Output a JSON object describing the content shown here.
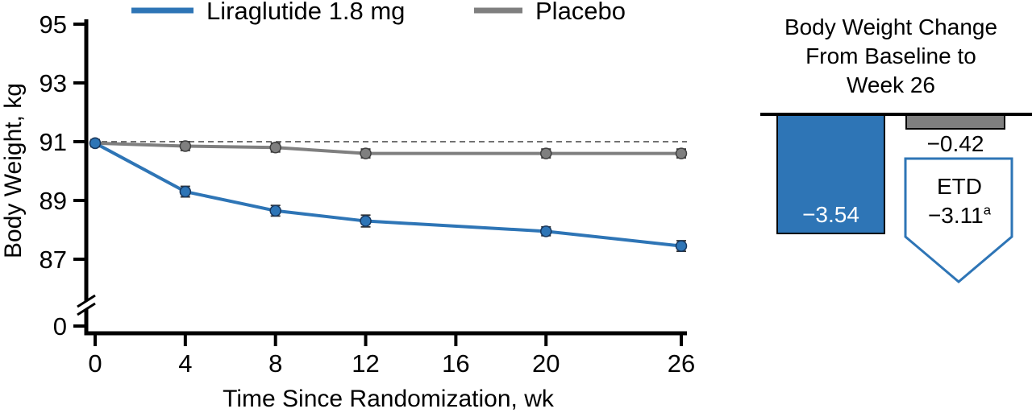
{
  "figure": {
    "background": "#ffffff"
  },
  "colors": {
    "liraglutide_blue": "#2E75B6",
    "placebo_gray": "#7F7F7F",
    "axis_black": "#000000"
  },
  "chart_data": [
    {
      "type": "line",
      "title": "",
      "xlabel": "Time Since Randomization, wk",
      "ylabel": "Body Weight, kg",
      "x_ticks": [
        0,
        4,
        8,
        12,
        16,
        20,
        26
      ],
      "y_ticks": [
        0,
        87,
        89,
        91,
        93,
        95
      ],
      "y_axis_break": true,
      "baseline_dashed_y": 91,
      "legend_position": "top",
      "x": [
        0,
        4,
        8,
        12,
        20,
        26
      ],
      "series": [
        {
          "name": "Liraglutide 1.8 mg",
          "color": "#2E75B6",
          "marker_edge": "#17375E",
          "values": [
            90.95,
            89.3,
            88.65,
            88.3,
            87.95,
            87.45
          ],
          "error": [
            0.12,
            0.18,
            0.18,
            0.2,
            0.15,
            0.18
          ]
        },
        {
          "name": "Placebo",
          "color": "#7F7F7F",
          "marker_edge": "#3F3F3F",
          "values": [
            90.95,
            90.85,
            90.8,
            90.6,
            90.6,
            90.6
          ],
          "error": [
            0.12,
            0.15,
            0.15,
            0.15,
            0.15,
            0.15
          ]
        }
      ]
    },
    {
      "type": "bar",
      "title": "Body Weight Change From Baseline to Week 26",
      "title_lines": [
        "Body Weight Change",
        "From Baseline to",
        "Week 26"
      ],
      "categories": [
        "Liraglutide 1.8 mg",
        "Placebo"
      ],
      "values": [
        -3.54,
        -0.42
      ],
      "bar_labels": [
        "−3.54",
        "−0.42"
      ],
      "annotation": {
        "label": "ETD",
        "value": "−3.11",
        "superscript": "a"
      }
    }
  ]
}
